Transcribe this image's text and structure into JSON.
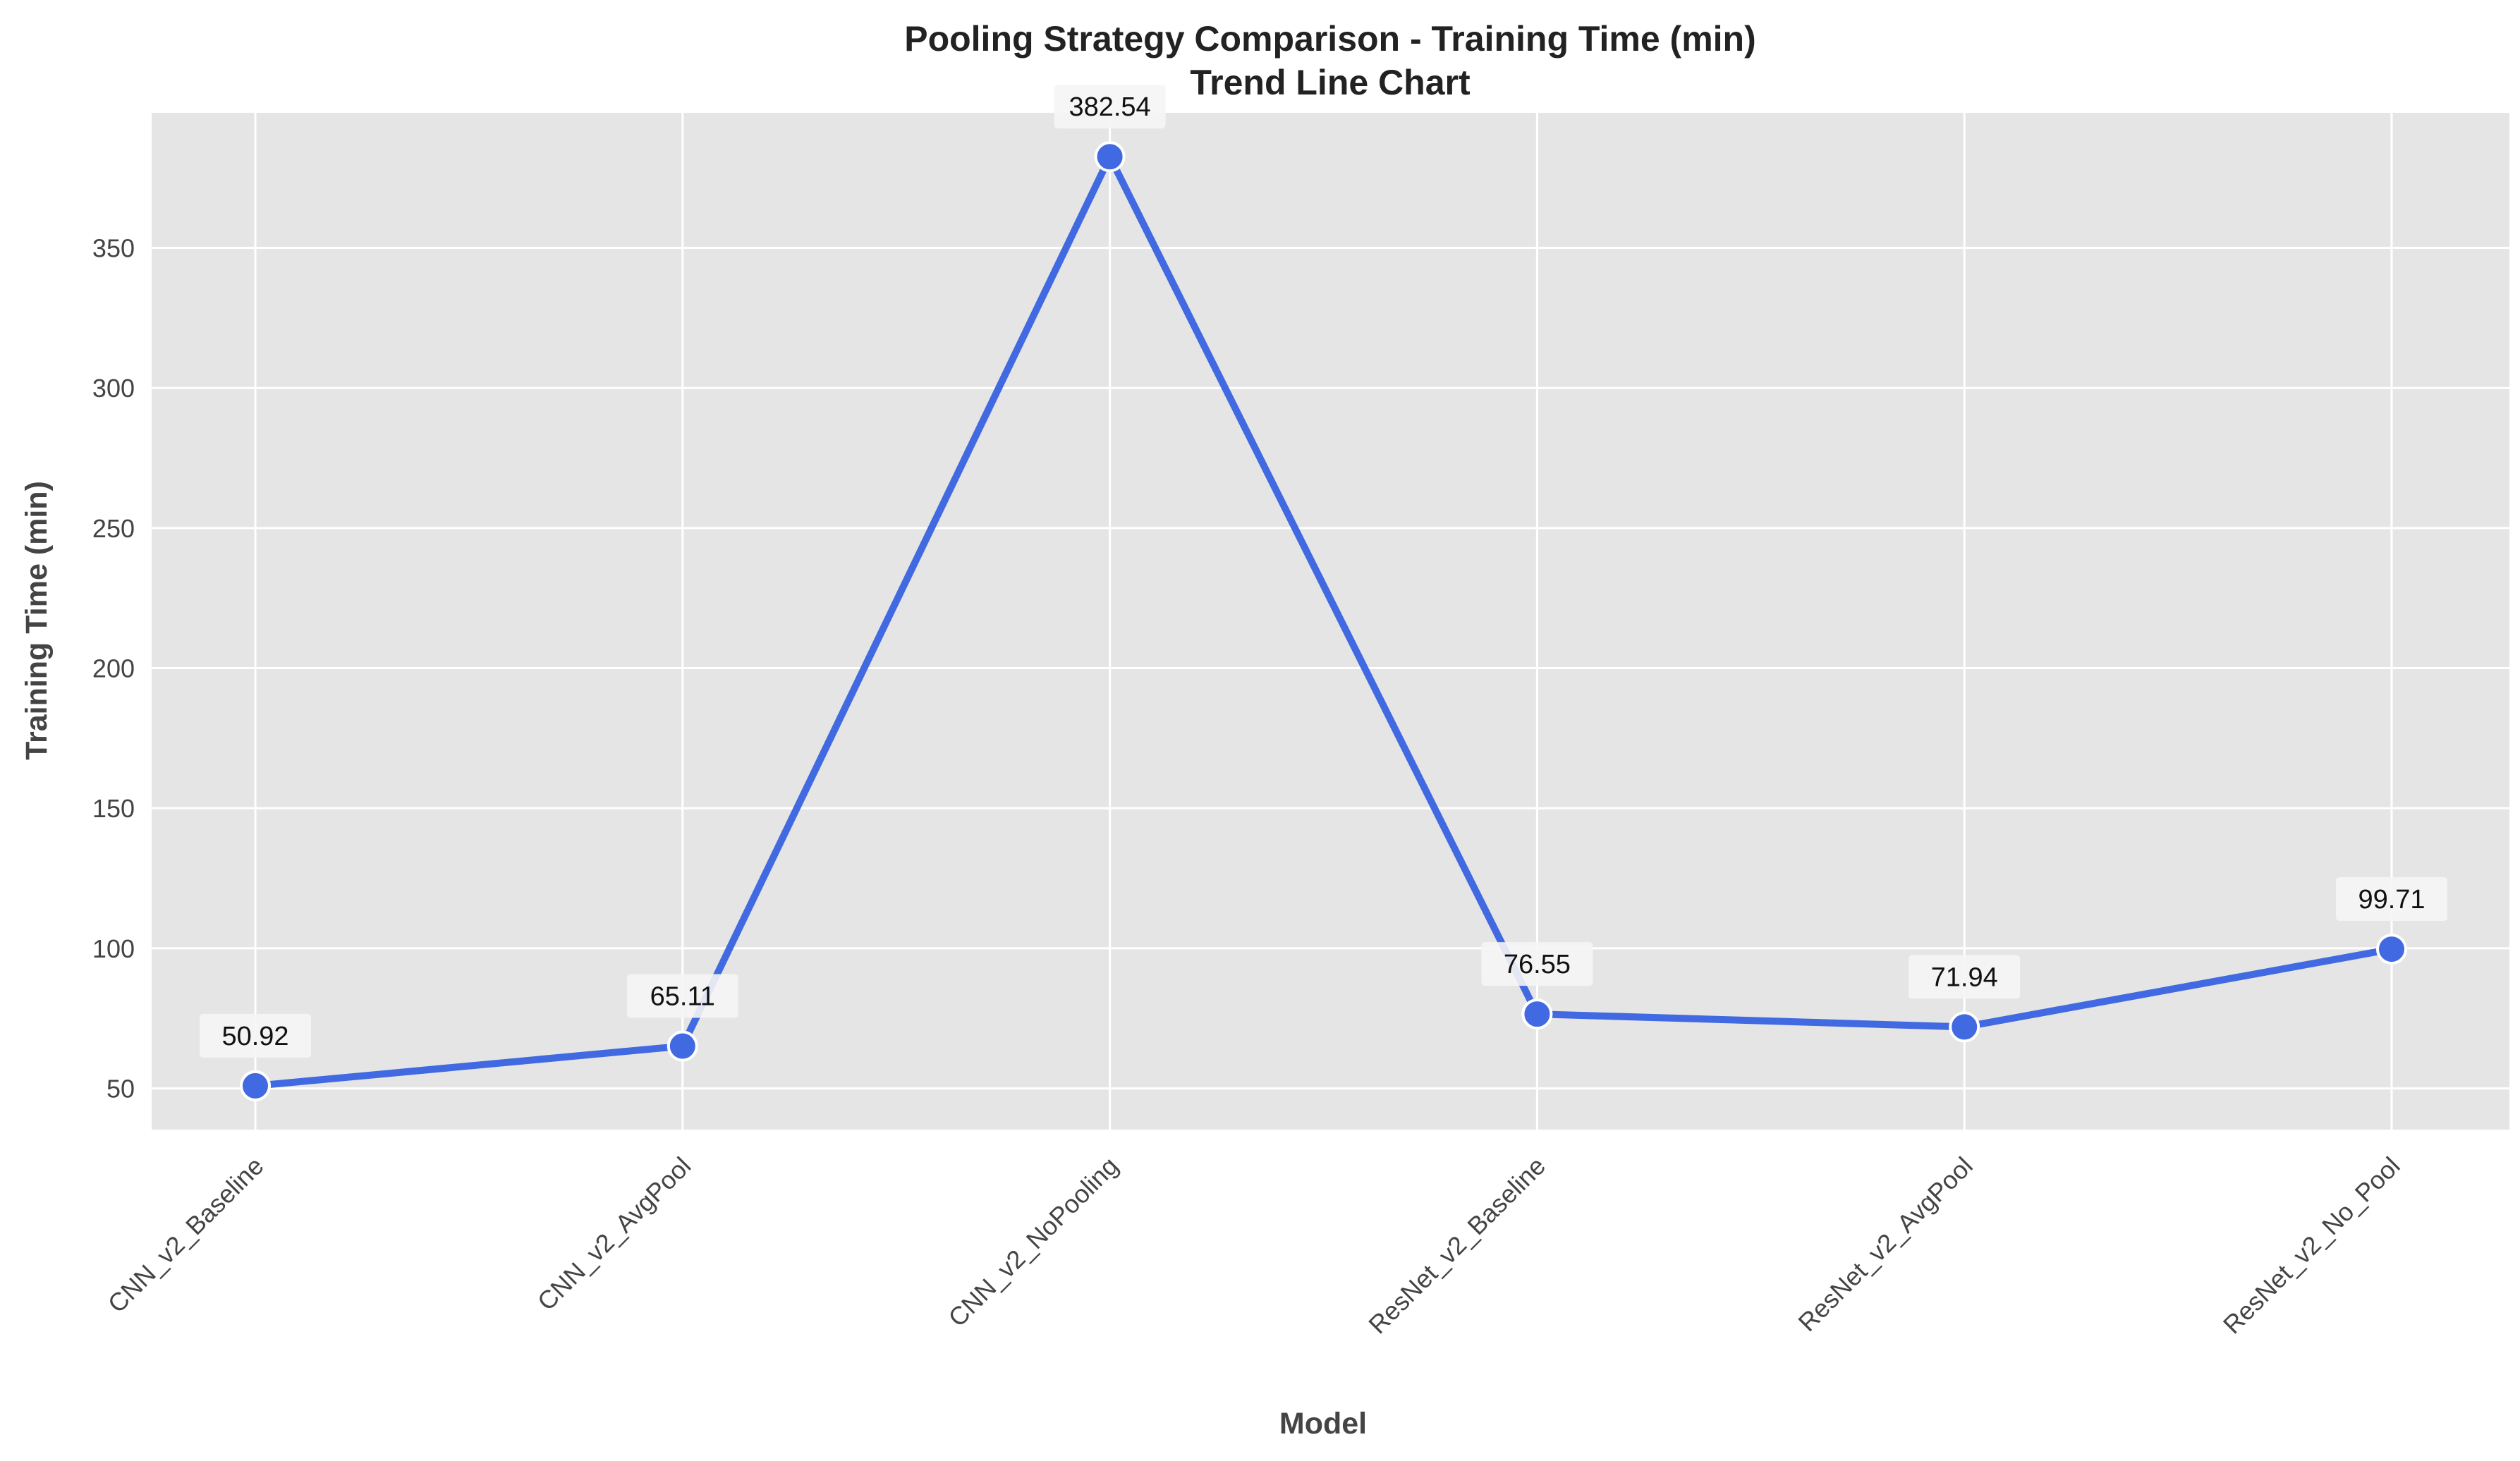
{
  "chart_data": {
    "type": "line",
    "title": "Pooling Strategy Comparison - Training Time (min)",
    "subtitle": "Trend Line Chart",
    "xlabel": "Model",
    "ylabel": "Training Time (min)",
    "categories": [
      "CNN_v2_Baseline",
      "CNN_v2_AvgPool",
      "CNN_v2_NoPooling",
      "ResNet_v2_Baseline",
      "ResNet_v2_AvgPool",
      "ResNet_v2_No_Pool"
    ],
    "values": [
      50.92,
      65.11,
      382.54,
      76.55,
      71.94,
      99.71
    ],
    "data_labels": [
      "50.92",
      "65.11",
      "382.54",
      "76.55",
      "71.94",
      "99.71"
    ],
    "ylim": [
      35.3,
      398.2
    ],
    "yticks": [
      50,
      100,
      150,
      200,
      250,
      300,
      350
    ],
    "grid": true,
    "colors": {
      "line": "#4169e1",
      "marker_edge": "#ffffff",
      "plot_bg": "#e5e5e5",
      "grid": "#ffffff",
      "label_box": "#f5f5f5"
    }
  }
}
